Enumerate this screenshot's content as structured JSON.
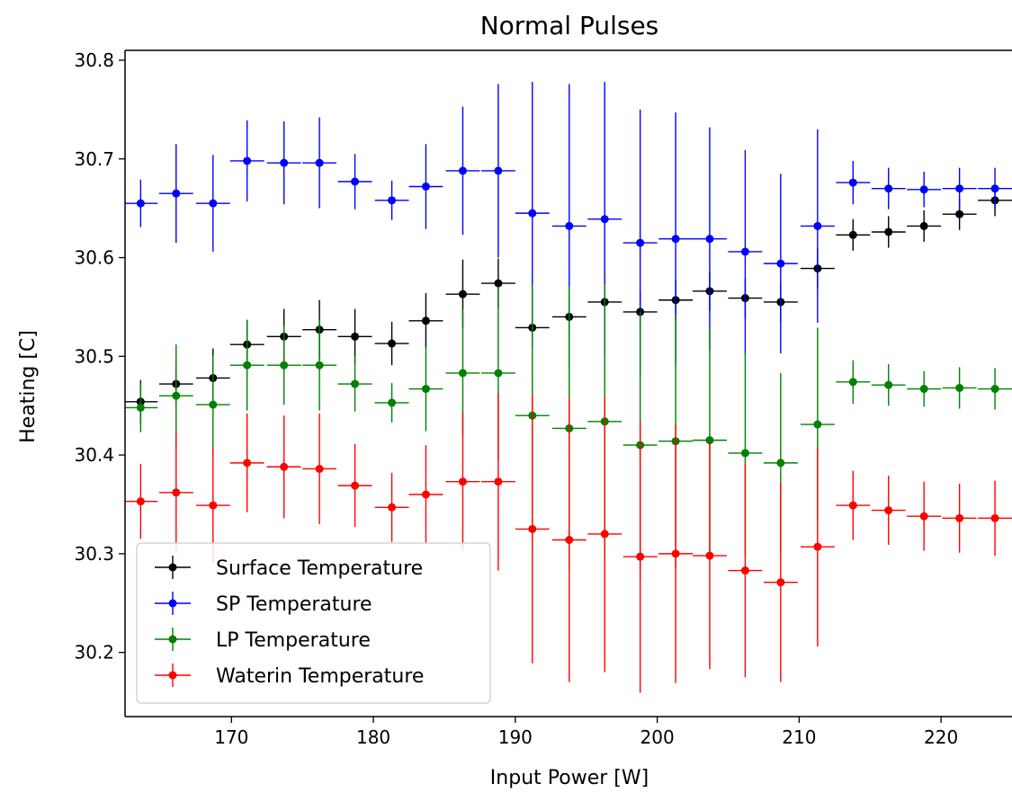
{
  "chart_data": {
    "type": "scatter",
    "title": "Normal Pulses",
    "xlabel": "Input Power [W]",
    "ylabel": "Heating [C]",
    "xlim": [
      162.5,
      225
    ],
    "ylim": [
      30.135,
      30.81
    ],
    "xticks": [
      "170",
      "180",
      "190",
      "200",
      "210",
      "220"
    ],
    "yticks": [
      "30.2",
      "30.3",
      "30.4",
      "30.5",
      "30.6",
      "30.7",
      "30.8"
    ],
    "legend_position": "lower-left",
    "x": [
      163.6,
      166.1,
      168.7,
      171.1,
      173.7,
      176.2,
      178.7,
      181.3,
      183.7,
      186.3,
      188.8,
      191.2,
      193.8,
      196.3,
      198.8,
      201.3,
      203.7,
      206.2,
      208.7,
      211.3,
      213.8,
      216.3,
      218.8,
      221.3,
      223.8
    ],
    "x_error": [
      1.2,
      1.2,
      1.2,
      1.2,
      1.2,
      1.2,
      1.2,
      1.2,
      1.2,
      1.2,
      1.2,
      1.2,
      1.2,
      1.2,
      1.2,
      1.2,
      1.2,
      1.2,
      1.2,
      1.2,
      1.2,
      1.2,
      1.2,
      1.2,
      1.2
    ],
    "series": [
      {
        "name": "Surface Temperature",
        "color": "#000000",
        "values": [
          30.454,
          30.472,
          30.478,
          30.512,
          30.52,
          30.527,
          30.52,
          30.513,
          30.536,
          30.563,
          30.574,
          30.529,
          30.54,
          30.555,
          30.545,
          30.557,
          30.566,
          30.559,
          30.555,
          30.589,
          30.623,
          30.626,
          30.632,
          30.644,
          30.658
        ],
        "errors": [
          0.022,
          0.022,
          0.03,
          0.025,
          0.028,
          0.03,
          0.028,
          0.022,
          0.028,
          0.035,
          0.025,
          0.02,
          0.02,
          0.02,
          0.02,
          0.02,
          0.02,
          0.02,
          0.02,
          0.02,
          0.016,
          0.016,
          0.016,
          0.016,
          0.016
        ]
      },
      {
        "name": "SP Temperature",
        "color": "#0000ff",
        "values": [
          30.655,
          30.665,
          30.655,
          30.698,
          30.696,
          30.696,
          30.677,
          30.658,
          30.672,
          30.688,
          30.688,
          30.645,
          30.632,
          30.639,
          30.615,
          30.619,
          30.619,
          30.606,
          30.594,
          30.632,
          30.676,
          30.67,
          30.669,
          30.67,
          30.67
        ],
        "errors": [
          0.024,
          0.05,
          0.049,
          0.041,
          0.042,
          0.046,
          0.028,
          0.02,
          0.043,
          0.065,
          0.088,
          0.133,
          0.144,
          0.139,
          0.135,
          0.128,
          0.113,
          0.103,
          0.091,
          0.098,
          0.022,
          0.021,
          0.018,
          0.021,
          0.021
        ]
      },
      {
        "name": "LP Temperature",
        "color": "#008000",
        "values": [
          30.448,
          30.46,
          30.451,
          30.491,
          30.491,
          30.491,
          30.472,
          30.453,
          30.467,
          30.483,
          30.483,
          30.44,
          30.427,
          30.434,
          30.41,
          30.414,
          30.415,
          30.402,
          30.392,
          30.431,
          30.474,
          30.471,
          30.467,
          30.468,
          30.467
        ],
        "errors": [
          0.025,
          0.052,
          0.05,
          0.046,
          0.04,
          0.046,
          0.028,
          0.02,
          0.043,
          0.065,
          0.088,
          0.133,
          0.144,
          0.139,
          0.135,
          0.128,
          0.113,
          0.103,
          0.091,
          0.098,
          0.022,
          0.021,
          0.018,
          0.021,
          0.021
        ]
      },
      {
        "name": "Waterin Temperature",
        "color": "#ff0000",
        "values": [
          30.353,
          30.362,
          30.349,
          30.392,
          30.388,
          30.386,
          30.369,
          30.347,
          30.36,
          30.373,
          30.373,
          30.325,
          30.314,
          30.32,
          30.297,
          30.3,
          30.298,
          30.283,
          30.271,
          30.307,
          30.349,
          30.344,
          30.338,
          30.336,
          30.336
        ],
        "errors": [
          0.038,
          0.061,
          0.058,
          0.05,
          0.052,
          0.056,
          0.042,
          0.035,
          0.05,
          0.07,
          0.09,
          0.136,
          0.144,
          0.14,
          0.138,
          0.131,
          0.115,
          0.108,
          0.101,
          0.101,
          0.035,
          0.035,
          0.035,
          0.035,
          0.038
        ]
      }
    ]
  }
}
